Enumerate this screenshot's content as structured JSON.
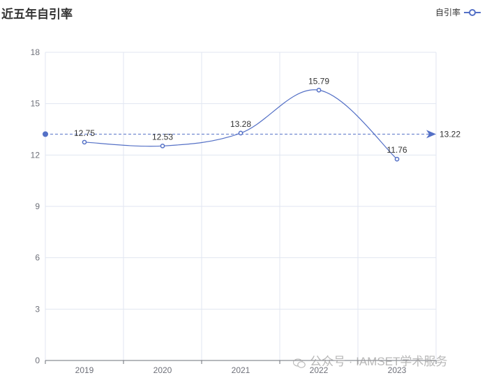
{
  "title": "近五年自引率",
  "legend": {
    "label": "自引率"
  },
  "watermark": "公众号 · IAMSET学术服务",
  "chart_data": {
    "type": "line",
    "title": "近五年自引率",
    "categories": [
      "2019",
      "2020",
      "2021",
      "2022",
      "2023"
    ],
    "series": [
      {
        "name": "自引率",
        "values": [
          12.75,
          12.53,
          13.28,
          15.79,
          11.76
        ],
        "smooth": true
      }
    ],
    "mark_line": {
      "value": 13.22,
      "label": "13.22",
      "type": "average"
    },
    "ylim": [
      0,
      18
    ],
    "yticks": [
      0,
      3,
      6,
      9,
      12,
      15,
      18
    ],
    "grid": true,
    "legend_position": "top-right",
    "colors": {
      "series": "#5470c6",
      "axis": "#6e7079",
      "grid": "#e0e6f1",
      "label": "#333333"
    }
  }
}
